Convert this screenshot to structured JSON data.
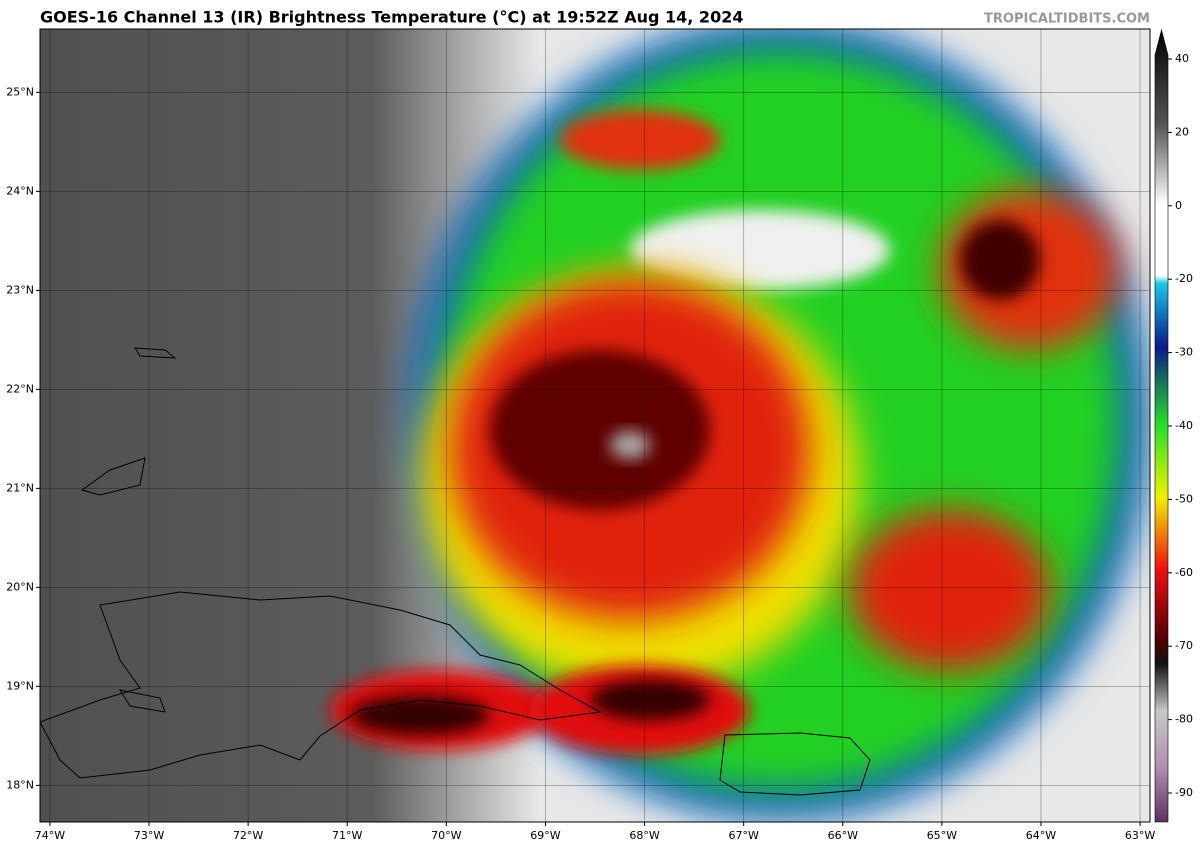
{
  "header": {
    "title": "GOES-16 Channel 13 (IR) Brightness Temperature (°C) at 19:52Z Aug 14, 2024",
    "watermark": "TROPICALTIDBITS.COM"
  },
  "map": {
    "xlim": [
      -74.1,
      -62.9
    ],
    "ylim": [
      17.63,
      25.64
    ],
    "xticks": [
      {
        "value": -74,
        "label": "74°W"
      },
      {
        "value": -73,
        "label": "73°W"
      },
      {
        "value": -72,
        "label": "72°W"
      },
      {
        "value": -71,
        "label": "71°W"
      },
      {
        "value": -70,
        "label": "70°W"
      },
      {
        "value": -69,
        "label": "69°W"
      },
      {
        "value": -68,
        "label": "68°W"
      },
      {
        "value": -67,
        "label": "67°W"
      },
      {
        "value": -66,
        "label": "66°W"
      },
      {
        "value": -65,
        "label": "65°W"
      },
      {
        "value": -64,
        "label": "64°W"
      },
      {
        "value": -63,
        "label": "63°W"
      }
    ],
    "yticks": [
      {
        "value": 25,
        "label": "25°N"
      },
      {
        "value": 24,
        "label": "24°N"
      },
      {
        "value": 23,
        "label": "23°N"
      },
      {
        "value": 22,
        "label": "22°N"
      },
      {
        "value": 21,
        "label": "21°N"
      },
      {
        "value": 20,
        "label": "20°N"
      },
      {
        "value": 19,
        "label": "19°N"
      },
      {
        "value": 18,
        "label": "18°N"
      }
    ],
    "grid": true
  },
  "colorbar": {
    "ticks": [
      40,
      20,
      0,
      -20,
      -30,
      -40,
      -50,
      -60,
      -70,
      -80,
      -90
    ]
  }
}
